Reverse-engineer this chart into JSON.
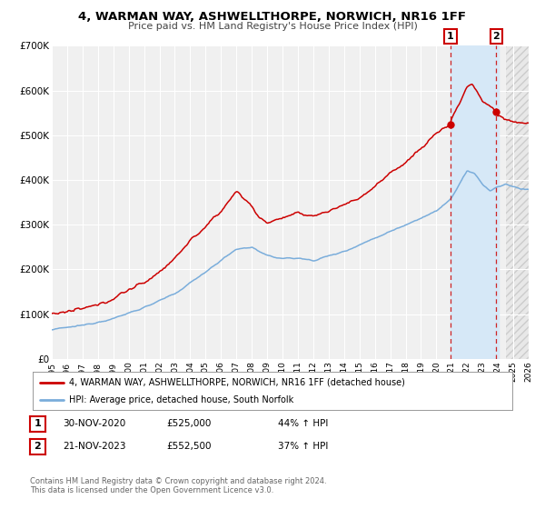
{
  "title": "4, WARMAN WAY, ASHWELLTHORPE, NORWICH, NR16 1FF",
  "subtitle": "Price paid vs. HM Land Registry's House Price Index (HPI)",
  "xlim": [
    1995,
    2026
  ],
  "ylim": [
    0,
    700000
  ],
  "yticks": [
    0,
    100000,
    200000,
    300000,
    400000,
    500000,
    600000,
    700000
  ],
  "ytick_labels": [
    "£0",
    "£100K",
    "£200K",
    "£300K",
    "£400K",
    "£500K",
    "£600K",
    "£700K"
  ],
  "sale1_x": 2020.917,
  "sale1_y": 525000,
  "sale2_x": 2023.9,
  "sale2_y": 552500,
  "sale1_date": "30-NOV-2020",
  "sale1_price": "£525,000",
  "sale1_hpi": "44% ↑ HPI",
  "sale2_date": "21-NOV-2023",
  "sale2_price": "£552,500",
  "sale2_hpi": "37% ↑ HPI",
  "red_line_color": "#cc0000",
  "blue_line_color": "#7aaddb",
  "bg_color": "#f0f0f0",
  "shaded_region_color": "#d6e8f7",
  "future_hatch_color": "#dddddd",
  "legend_line1": "4, WARMAN WAY, ASHWELLTHORPE, NORWICH, NR16 1FF (detached house)",
  "legend_line2": "HPI: Average price, detached house, South Norfolk",
  "footer1": "Contains HM Land Registry data © Crown copyright and database right 2024.",
  "footer2": "This data is licensed under the Open Government Licence v3.0."
}
